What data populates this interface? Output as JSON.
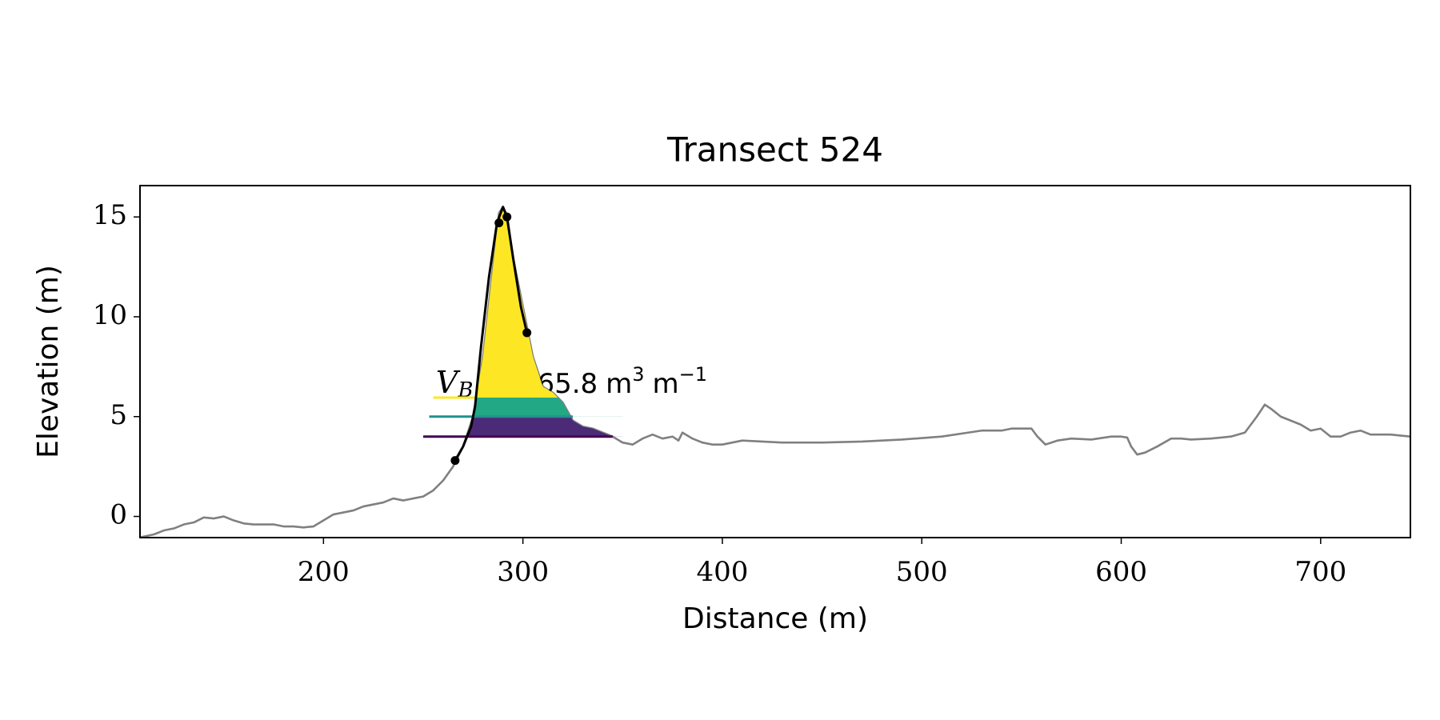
{
  "chart_data": {
    "type": "line",
    "title": "Transect 524",
    "xlabel": "Distance (m)",
    "ylabel": "Elevation (m)",
    "xlim": [
      108,
      745
    ],
    "ylim": [
      -1.06,
      16.57
    ],
    "xticks": [
      200,
      300,
      400,
      500,
      600,
      700
    ],
    "yticks": [
      0,
      5,
      10,
      15
    ],
    "series": [
      {
        "type": "line",
        "color": "#808080",
        "x": [
          108,
          115,
          120,
          125,
          130,
          135,
          140,
          145,
          150,
          155,
          160,
          165,
          175,
          180,
          185,
          190,
          195,
          200,
          205,
          210,
          215,
          220,
          225,
          230,
          235,
          240,
          245,
          250,
          255,
          260,
          265,
          270,
          275,
          280,
          285,
          288,
          290,
          292,
          295,
          300,
          305,
          310,
          315,
          320,
          325,
          330,
          335,
          340,
          345,
          350,
          355,
          360,
          365,
          370,
          375,
          378,
          380,
          385,
          390,
          395,
          400,
          405,
          410,
          430,
          450,
          470,
          490,
          510,
          530,
          540,
          545,
          550,
          555,
          558,
          562,
          568,
          575,
          585,
          595,
          600,
          603,
          605,
          608,
          612,
          618,
          625,
          630,
          635,
          645,
          655,
          662,
          668,
          672,
          675,
          680,
          690,
          695,
          700,
          705,
          710,
          715,
          720,
          725,
          735,
          745
        ],
        "values": [
          -1.05,
          -0.9,
          -0.7,
          -0.6,
          -0.4,
          -0.3,
          -0.05,
          -0.1,
          0.0,
          -0.2,
          -0.35,
          -0.4,
          -0.4,
          -0.5,
          -0.5,
          -0.55,
          -0.5,
          -0.2,
          0.1,
          0.2,
          0.3,
          0.5,
          0.6,
          0.7,
          0.9,
          0.8,
          0.9,
          1.0,
          1.3,
          1.8,
          2.5,
          3.5,
          5.0,
          8.0,
          12.5,
          15.2,
          15.5,
          15.1,
          13.0,
          10.5,
          8.0,
          6.5,
          6.2,
          5.7,
          4.8,
          4.5,
          4.4,
          4.2,
          4.0,
          3.7,
          3.6,
          3.9,
          4.1,
          3.9,
          4.0,
          3.8,
          4.2,
          3.9,
          3.7,
          3.6,
          3.6,
          3.7,
          3.8,
          3.7,
          3.7,
          3.75,
          3.85,
          4.0,
          4.3,
          4.3,
          4.4,
          4.4,
          4.4,
          4.0,
          3.6,
          3.8,
          3.9,
          3.85,
          4.0,
          4.0,
          3.95,
          3.5,
          3.1,
          3.2,
          3.5,
          3.9,
          3.9,
          3.85,
          3.9,
          4.0,
          4.2,
          5.0,
          5.6,
          5.4,
          5.0,
          4.6,
          4.3,
          4.4,
          4.0,
          4.0,
          4.2,
          4.3,
          4.1,
          4.1,
          4.0
        ]
      },
      {
        "type": "line",
        "color": "#000000",
        "x": [
          266,
          270,
          274,
          276,
          279,
          283,
          287,
          290,
          292,
          295,
          299,
          302
        ],
        "values": [
          2.8,
          3.5,
          4.5,
          5.5,
          8.5,
          12.0,
          14.7,
          15.5,
          15.0,
          13.0,
          10.5,
          9.2
        ]
      },
      {
        "type": "scatter",
        "color": "#000000",
        "x": [
          266,
          288,
          292,
          302
        ],
        "values": [
          2.8,
          14.7,
          15.0,
          9.2
        ]
      }
    ],
    "fill_xlim": [
      266,
      350
    ],
    "bands": [
      {
        "lo": 4.0,
        "color": "#440154",
        "fill": "#4b2a78",
        "line_x": [
          250,
          345
        ]
      },
      {
        "lo": 5.0,
        "color": "#21918c",
        "fill": "#22a884",
        "line_x": [
          253,
          325
        ]
      },
      {
        "lo": 5.95,
        "color": "#fde725",
        "fill": "#fde725",
        "line_x": [
          255,
          276
        ]
      }
    ],
    "annotation": {
      "symbol": "V",
      "subscript": "B",
      "value": 65.8,
      "unit": "m",
      "unit_exp": "3",
      "unit2": "m",
      "unit2_exp": "−1"
    }
  }
}
